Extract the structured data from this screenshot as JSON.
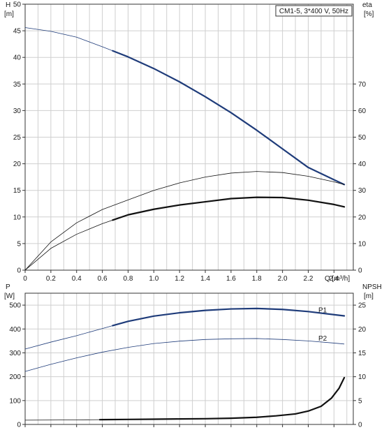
{
  "chart_data": [
    {
      "type": "line",
      "legend_box": "CM1-5, 3*400 V, 50Hz",
      "xlabel": "Q [m³/h]",
      "x_ticks": [
        "0",
        "0.2",
        "0.4",
        "0.6",
        "0.8",
        "1.0",
        "1.2",
        "1.4",
        "1.6",
        "1.8",
        "2.0",
        "2.2",
        "2.4"
      ],
      "xlim": [
        0,
        2.55
      ],
      "y_left": {
        "label_line1": "H",
        "label_line2": "[m]",
        "ylim": [
          0,
          50
        ],
        "ticks": [
          "0",
          "5",
          "10",
          "15",
          "20",
          "25",
          "30",
          "35",
          "40",
          "45",
          "50"
        ]
      },
      "y_right": {
        "label_line1": "eta",
        "label_line2": "[%]",
        "ylim": [
          0,
          100
        ],
        "ticks": [
          "0",
          "10",
          "20",
          "30",
          "40",
          "50",
          "60",
          "70"
        ]
      },
      "grid": true,
      "series": [
        {
          "axis": "left",
          "color": "#1f3c7a",
          "emphasis_from": 0.68,
          "x": [
            0,
            0.2,
            0.4,
            0.6,
            0.8,
            1.0,
            1.2,
            1.4,
            1.6,
            1.8,
            2.0,
            2.2,
            2.4,
            2.48
          ],
          "y": [
            45.6,
            44.9,
            43.8,
            42.0,
            40.1,
            37.9,
            35.4,
            32.6,
            29.6,
            26.3,
            22.8,
            19.3,
            17.0,
            16.1
          ]
        },
        {
          "axis": "right",
          "color": "#111111",
          "emphasis_from": 2.48,
          "x": [
            0,
            0.2,
            0.4,
            0.6,
            0.8,
            1.0,
            1.2,
            1.4,
            1.6,
            1.8,
            2.0,
            2.2,
            2.4,
            2.48
          ],
          "y": [
            0,
            10.6,
            17.8,
            22.8,
            26.4,
            30.0,
            32.8,
            35.0,
            36.5,
            37.1,
            36.7,
            35.3,
            33.2,
            32.2
          ]
        },
        {
          "axis": "right",
          "color": "#111111",
          "emphasis_from": 0.68,
          "x": [
            0,
            0.2,
            0.4,
            0.6,
            0.8,
            1.0,
            1.2,
            1.4,
            1.6,
            1.8,
            2.0,
            2.2,
            2.4,
            2.48
          ],
          "y": [
            0,
            8.2,
            13.5,
            17.5,
            20.8,
            22.9,
            24.5,
            25.7,
            26.9,
            27.4,
            27.3,
            26.3,
            24.7,
            23.8
          ]
        }
      ]
    },
    {
      "type": "line",
      "x_ticks": [
        "0",
        "0.2",
        "0.4",
        "0.6",
        "0.8",
        "1.0",
        "1.2",
        "1.4",
        "1.6",
        "1.8",
        "2.0",
        "2.2",
        "2.4"
      ],
      "xlim": [
        0,
        2.55
      ],
      "y_left": {
        "label_line1": "P",
        "label_line2": "[W]",
        "ylim": [
          0,
          550
        ],
        "ticks": [
          "0",
          "100",
          "200",
          "300",
          "400",
          "500"
        ]
      },
      "y_right": {
        "label_line1": "NPSH",
        "label_line2": "[m]",
        "ylim": [
          0,
          27.5
        ],
        "ticks": [
          "0",
          "5",
          "10",
          "15",
          "20",
          "25"
        ]
      },
      "grid": true,
      "series": [
        {
          "name": "P1",
          "axis": "left",
          "color": "#1f3c7a",
          "emphasis_from": 0.68,
          "x": [
            0,
            0.2,
            0.4,
            0.6,
            0.8,
            1.0,
            1.2,
            1.4,
            1.6,
            1.8,
            2.0,
            2.2,
            2.4,
            2.48
          ],
          "y": [
            316,
            345,
            372,
            402,
            432,
            454,
            468,
            478,
            484,
            486,
            482,
            473,
            460,
            455
          ]
        },
        {
          "name": "P2",
          "axis": "left",
          "color": "#1f3c7a",
          "emphasis_from": 2.48,
          "x": [
            0,
            0.2,
            0.4,
            0.6,
            0.8,
            1.0,
            1.2,
            1.4,
            1.6,
            1.8,
            2.0,
            2.2,
            2.4,
            2.48
          ],
          "y": [
            222,
            252,
            279,
            303,
            323,
            339,
            349,
            356,
            359,
            360,
            356,
            350,
            341,
            337
          ]
        },
        {
          "axis": "right",
          "color": "#111111",
          "emphasis_from": 0.58,
          "x": [
            0,
            0.4,
            0.6,
            0.8,
            1.0,
            1.2,
            1.4,
            1.6,
            1.8,
            1.95,
            2.1,
            2.2,
            2.3,
            2.38,
            2.44,
            2.48
          ],
          "y": [
            0.9,
            0.95,
            1.0,
            1.05,
            1.1,
            1.15,
            1.2,
            1.3,
            1.5,
            1.8,
            2.2,
            2.8,
            3.8,
            5.5,
            7.6,
            9.8
          ]
        }
      ]
    }
  ]
}
